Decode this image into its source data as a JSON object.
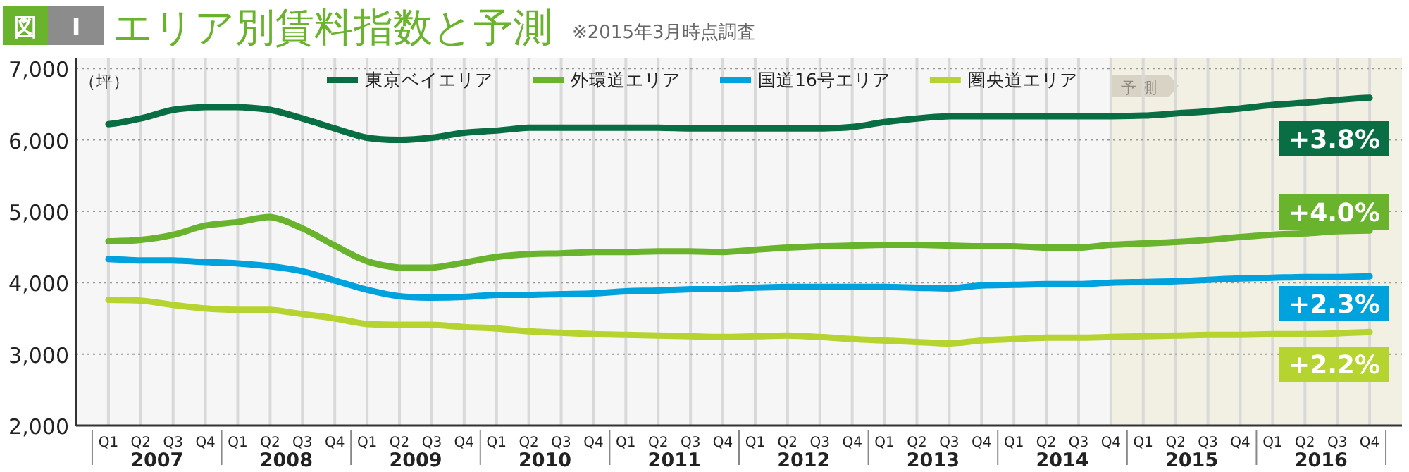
{
  "chart_data": {
    "type": "line",
    "title": "エリア別賃料指数と予測",
    "ylabel": "（坪）",
    "annotations": [
      "図",
      "Ⅰ",
      "※2015年3月時点調査",
      "+3.8%",
      "+4.0%",
      "+2.3%",
      "+2.2%",
      "2007",
      "2008",
      "2009",
      "2010",
      "2011",
      "2012",
      "2013",
      "2014",
      "2015",
      "2016"
    ],
    "x": [
      "2007-01",
      "2007-04",
      "2007-07",
      "2007-10",
      "2008-01",
      "2008-04",
      "2008-07",
      "2008-10",
      "2009-01",
      "2009-04",
      "2009-07",
      "2009-10",
      "2010-01",
      "2010-04",
      "2010-07",
      "2010-10",
      "2011-01",
      "2011-04",
      "2011-07",
      "2011-10",
      "2012-01",
      "2012-04",
      "2012-07",
      "2012-10",
      "2013-01",
      "2013-04",
      "2013-07",
      "2013-10",
      "2014-01",
      "2014-04",
      "2014-07",
      "2014-10",
      "2015-01",
      "2015-04",
      "2015-07",
      "2015-10",
      "2016-01",
      "2016-04",
      "2016-07",
      "2016-10"
    ],
    "series": [
      {
        "name": "東京ベイエリア",
        "color": "#0a6e45",
        "values": [
          6220,
          6300,
          6420,
          6460,
          6460,
          6420,
          6300,
          6160,
          6030,
          6000,
          6030,
          6100,
          6130,
          6170,
          6170,
          6170,
          6170,
          6170,
          6160,
          6160,
          6160,
          6160,
          6160,
          6180,
          6250,
          6300,
          6330,
          6330,
          6330,
          6330,
          6330,
          6330,
          6340,
          6370,
          6400,
          6440,
          6490,
          6520,
          6560,
          6590
        ]
      },
      {
        "name": "外環道エリア",
        "color": "#6ab42d",
        "values": [
          4580,
          4600,
          4670,
          4800,
          4850,
          4920,
          4760,
          4520,
          4300,
          4210,
          4210,
          4280,
          4360,
          4400,
          4410,
          4430,
          4430,
          4440,
          4440,
          4430,
          4460,
          4490,
          4510,
          4520,
          4530,
          4530,
          4520,
          4510,
          4510,
          4490,
          4490,
          4530,
          4550,
          4570,
          4600,
          4640,
          4670,
          4690,
          4720,
          4730
        ]
      },
      {
        "name": "国道16号エリア",
        "color": "#00a2de",
        "values": [
          4330,
          4310,
          4310,
          4290,
          4270,
          4230,
          4160,
          4030,
          3900,
          3810,
          3790,
          3800,
          3830,
          3830,
          3840,
          3850,
          3880,
          3890,
          3910,
          3910,
          3930,
          3940,
          3940,
          3940,
          3940,
          3930,
          3920,
          3960,
          3970,
          3980,
          3980,
          4000,
          4010,
          4020,
          4040,
          4060,
          4070,
          4080,
          4080,
          4090
        ]
      },
      {
        "name": "圏央道エリア",
        "color": "#b6d430",
        "values": [
          3760,
          3750,
          3690,
          3640,
          3620,
          3620,
          3560,
          3500,
          3420,
          3410,
          3410,
          3380,
          3360,
          3320,
          3300,
          3280,
          3270,
          3260,
          3250,
          3240,
          3250,
          3260,
          3240,
          3210,
          3190,
          3170,
          3150,
          3190,
          3210,
          3230,
          3230,
          3240,
          3250,
          3260,
          3270,
          3270,
          3280,
          3280,
          3290,
          3310
        ]
      }
    ],
    "xlim": [
      "2006-10",
      "2017-01"
    ],
    "xticks": [
      {
        "value": "2007-01",
        "label": "Q1"
      },
      {
        "value": "2007-04",
        "label": "Q2"
      },
      {
        "value": "2007-07",
        "label": "Q3"
      },
      {
        "value": "2007-10",
        "label": "Q4"
      },
      {
        "value": "2008-01",
        "label": "Q1"
      },
      {
        "value": "2008-04",
        "label": "Q2"
      },
      {
        "value": "2008-07",
        "label": "Q3"
      },
      {
        "value": "2008-10",
        "label": "Q4"
      },
      {
        "value": "2009-01",
        "label": "Q1"
      },
      {
        "value": "2009-04",
        "label": "Q2"
      },
      {
        "value": "2009-07",
        "label": "Q3"
      },
      {
        "value": "2009-10",
        "label": "Q4"
      },
      {
        "value": "2010-01",
        "label": "Q1"
      },
      {
        "value": "2010-04",
        "label": "Q2"
      },
      {
        "value": "2010-07",
        "label": "Q3"
      },
      {
        "value": "2010-10",
        "label": "Q4"
      },
      {
        "value": "2011-01",
        "label": "Q1"
      },
      {
        "value": "2011-04",
        "label": "Q2"
      },
      {
        "value": "2011-07",
        "label": "Q3"
      },
      {
        "value": "2011-10",
        "label": "Q4"
      },
      {
        "value": "2012-01",
        "label": "Q1"
      },
      {
        "value": "2012-04",
        "label": "Q2"
      },
      {
        "value": "2012-07",
        "label": "Q3"
      },
      {
        "value": "2012-10",
        "label": "Q4"
      },
      {
        "value": "2013-01",
        "label": "Q1"
      },
      {
        "value": "2013-04",
        "label": "Q2"
      },
      {
        "value": "2013-07",
        "label": "Q3"
      },
      {
        "value": "2013-10",
        "label": "Q4"
      },
      {
        "value": "2014-01",
        "label": "Q1"
      },
      {
        "value": "2014-04",
        "label": "Q2"
      },
      {
        "value": "2014-07",
        "label": "Q3"
      },
      {
        "value": "2014-10",
        "label": "Q4"
      },
      {
        "value": "2015-01",
        "label": "Q1"
      },
      {
        "value": "2015-04",
        "label": "Q2"
      },
      {
        "value": "2015-07",
        "label": "Q3"
      },
      {
        "value": "2015-10",
        "label": "Q4"
      },
      {
        "value": "2016-01",
        "label": "Q1"
      },
      {
        "value": "2016-04",
        "label": "Q2"
      },
      {
        "value": "2016-07",
        "label": "Q3"
      },
      {
        "value": "2016-10",
        "label": "Q4"
      }
    ],
    "ylim": [
      2000,
      7150
    ],
    "yticks": [
      {
        "value": 2000,
        "label": "2,000"
      },
      {
        "value": 3000,
        "label": "3,000"
      },
      {
        "value": 4000,
        "label": "4,000"
      },
      {
        "value": 5000,
        "label": "5,000"
      },
      {
        "value": 6000,
        "label": "6,000"
      },
      {
        "value": 7000,
        "label": "7,000"
      }
    ],
    "bands": [
      {
        "axis": "x",
        "from": "2014-10",
        "to": "2017-01",
        "label": "予 測",
        "color": "#f2efe3"
      }
    ],
    "grid": true,
    "legend": "top",
    "marker": "none",
    "line_style": "solid"
  }
}
